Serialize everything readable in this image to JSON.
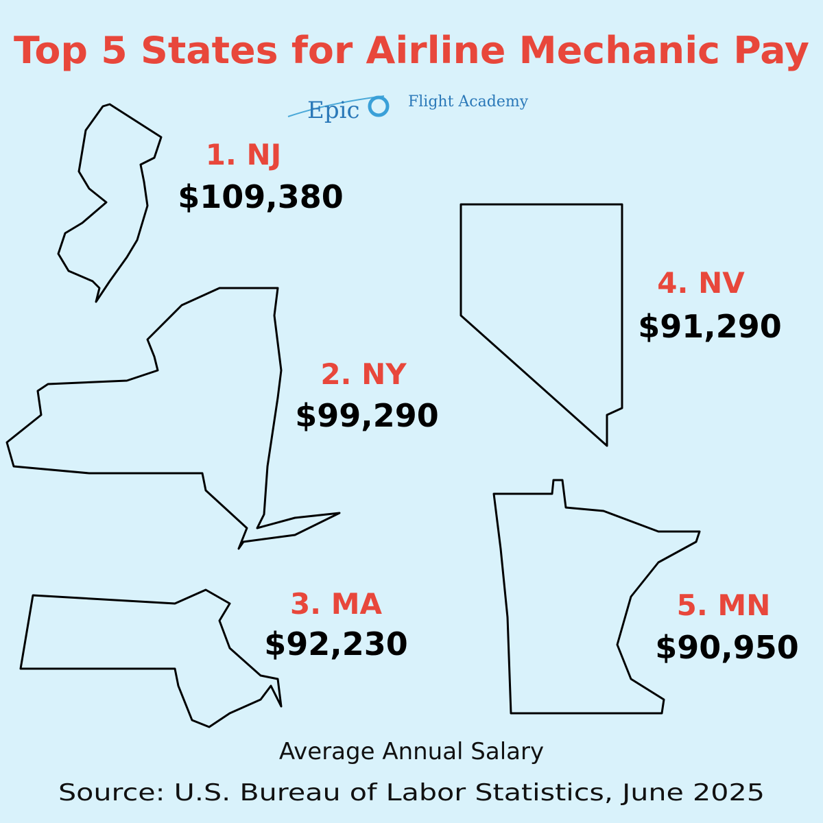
{
  "header": {
    "title": "Top 5 States for Airline Mechanic Pay",
    "logo": {
      "brand": "Epic",
      "name": "Flight Academy"
    }
  },
  "states": [
    {
      "rank": "1. NJ",
      "salary": "$109,380"
    },
    {
      "rank": "2. NY",
      "salary": "$99,290"
    },
    {
      "rank": "3. MA",
      "salary": "$92,230"
    },
    {
      "rank": "4. NV",
      "salary": "$91,290"
    },
    {
      "rank": "5. MN",
      "salary": "$90,950"
    }
  ],
  "footer": {
    "caption": "Average Annual Salary",
    "source": "Source: U.S. Bureau of Labor Statistics, June 2025"
  }
}
